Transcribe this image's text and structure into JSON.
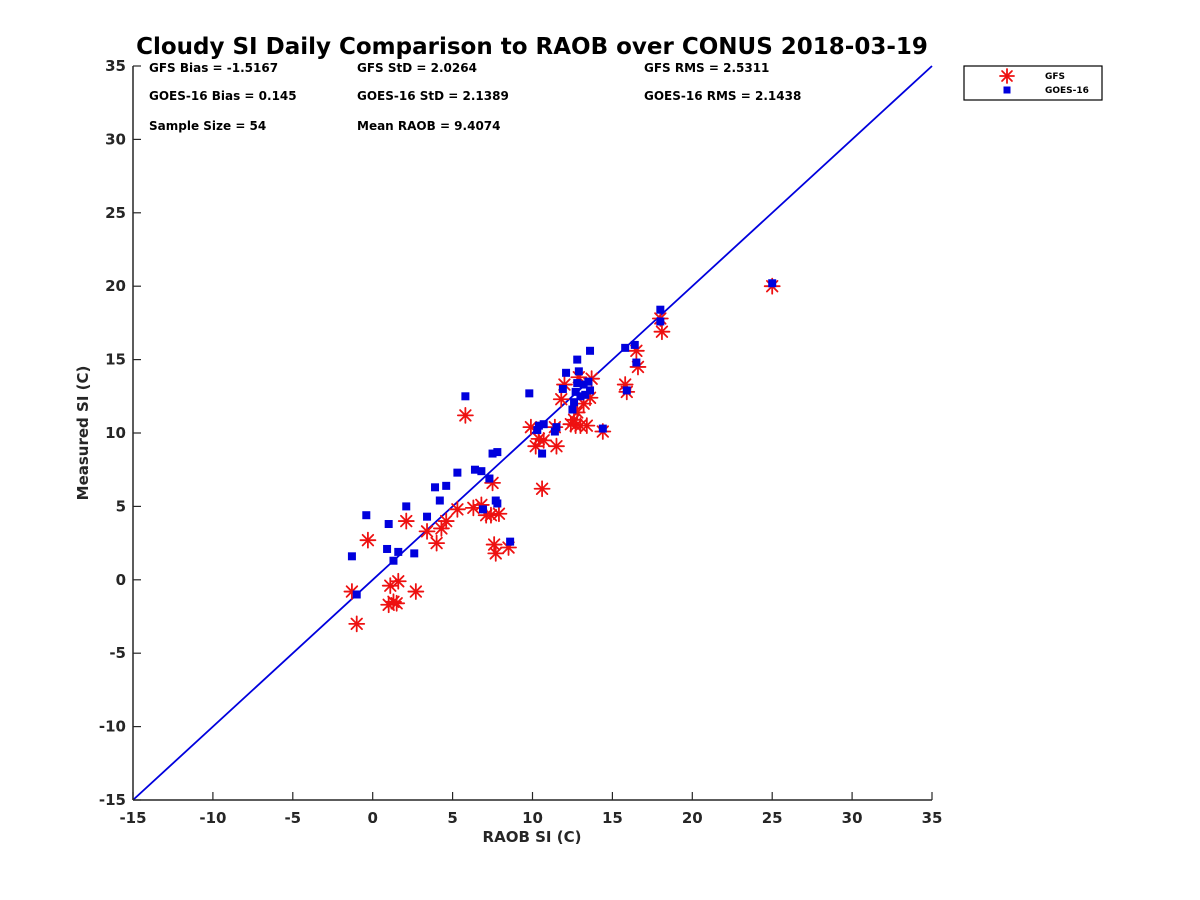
{
  "chart_data": {
    "type": "scatter",
    "title": "Cloudy SI Daily Comparison to RAOB over CONUS 2018-03-19",
    "xlabel": "RAOB SI (C)",
    "ylabel": "Measured SI (C)",
    "xlim": [
      -15,
      35
    ],
    "ylim": [
      -15,
      35
    ],
    "xticks": [
      -15,
      -10,
      -5,
      0,
      5,
      10,
      15,
      20,
      25,
      30,
      35
    ],
    "yticks": [
      -15,
      -10,
      -5,
      0,
      5,
      10,
      15,
      20,
      25,
      30,
      35
    ],
    "xtick_labels": [
      "-15",
      "-10",
      "-5",
      "0",
      "5",
      "10",
      "15",
      "20",
      "25",
      "30",
      "35"
    ],
    "ytick_labels": [
      "-15",
      "-10",
      "-5",
      "0",
      "5",
      "10",
      "15",
      "20",
      "25",
      "30",
      "35"
    ],
    "grid": false,
    "legend_position": "top-right outside",
    "reference_line": {
      "from": [
        -15,
        -15
      ],
      "to": [
        35,
        35
      ],
      "color": "#0000dd"
    },
    "stats": [
      [
        "GFS Bias = -1.5167",
        "GFS StD = 2.0264",
        "GFS RMS = 2.5311"
      ],
      [
        "GOES-16 Bias = 0.145",
        "GOES-16 StD = 2.1389",
        "GOES-16 RMS = 2.1438"
      ],
      [
        "Sample Size = 54",
        "Mean RAOB = 9.4074",
        ""
      ]
    ],
    "series": [
      {
        "name": "GFS",
        "marker": "asterisk",
        "color": "#ee1111",
        "points": [
          [
            -1.3,
            -0.8
          ],
          [
            -1.0,
            -3.0
          ],
          [
            -0.3,
            2.7
          ],
          [
            1.0,
            -1.7
          ],
          [
            1.1,
            -0.4
          ],
          [
            1.3,
            -1.5
          ],
          [
            1.5,
            -1.6
          ],
          [
            1.6,
            -0.1
          ],
          [
            2.1,
            4.0
          ],
          [
            2.7,
            -0.8
          ],
          [
            3.4,
            3.3
          ],
          [
            4.0,
            2.5
          ],
          [
            4.3,
            3.5
          ],
          [
            4.6,
            4.0
          ],
          [
            5.3,
            4.8
          ],
          [
            5.8,
            11.2
          ],
          [
            6.3,
            4.9
          ],
          [
            6.8,
            5.1
          ],
          [
            7.1,
            4.4
          ],
          [
            7.4,
            4.4
          ],
          [
            7.5,
            6.6
          ],
          [
            7.6,
            2.4
          ],
          [
            7.7,
            1.8
          ],
          [
            7.9,
            4.5
          ],
          [
            8.5,
            2.2
          ],
          [
            9.9,
            10.4
          ],
          [
            10.2,
            9.1
          ],
          [
            10.4,
            9.6
          ],
          [
            10.6,
            6.2
          ],
          [
            10.7,
            9.5
          ],
          [
            11.4,
            10.4
          ],
          [
            11.5,
            9.1
          ],
          [
            11.8,
            12.3
          ],
          [
            12.0,
            13.3
          ],
          [
            12.4,
            10.6
          ],
          [
            12.6,
            10.9
          ],
          [
            12.7,
            10.5
          ],
          [
            12.8,
            11.4
          ],
          [
            12.9,
            13.8
          ],
          [
            13.0,
            10.5
          ],
          [
            13.2,
            12.0
          ],
          [
            13.4,
            10.5
          ],
          [
            13.6,
            12.4
          ],
          [
            13.7,
            13.7
          ],
          [
            14.4,
            10.1
          ],
          [
            15.8,
            13.3
          ],
          [
            15.9,
            12.8
          ],
          [
            16.5,
            15.6
          ],
          [
            16.6,
            14.5
          ],
          [
            18.0,
            17.8
          ],
          [
            18.1,
            16.9
          ],
          [
            25.0,
            20.0
          ]
        ]
      },
      {
        "name": "GOES-16",
        "marker": "square",
        "color": "#0000dd",
        "points": [
          [
            -1.3,
            1.6
          ],
          [
            -1.0,
            -1.0
          ],
          [
            -0.4,
            4.4
          ],
          [
            0.9,
            2.1
          ],
          [
            1.0,
            3.8
          ],
          [
            1.3,
            1.3
          ],
          [
            1.6,
            1.9
          ],
          [
            2.1,
            5.0
          ],
          [
            2.6,
            1.8
          ],
          [
            3.4,
            4.3
          ],
          [
            3.9,
            6.3
          ],
          [
            4.2,
            5.4
          ],
          [
            4.6,
            6.4
          ],
          [
            5.3,
            7.3
          ],
          [
            5.8,
            12.5
          ],
          [
            6.4,
            7.5
          ],
          [
            6.8,
            7.4
          ],
          [
            6.9,
            4.8
          ],
          [
            7.3,
            6.9
          ],
          [
            7.5,
            8.6
          ],
          [
            7.7,
            5.4
          ],
          [
            7.8,
            5.2
          ],
          [
            7.8,
            8.7
          ],
          [
            8.6,
            2.6
          ],
          [
            9.8,
            12.7
          ],
          [
            10.3,
            10.2
          ],
          [
            10.4,
            10.5
          ],
          [
            10.6,
            8.6
          ],
          [
            10.7,
            10.6
          ],
          [
            11.4,
            10.1
          ],
          [
            11.5,
            10.4
          ],
          [
            11.9,
            13.0
          ],
          [
            12.1,
            14.1
          ],
          [
            12.5,
            11.6
          ],
          [
            12.6,
            12.1
          ],
          [
            12.7,
            12.8
          ],
          [
            12.8,
            13.4
          ],
          [
            12.8,
            15.0
          ],
          [
            12.9,
            14.2
          ],
          [
            13.0,
            12.5
          ],
          [
            13.2,
            13.3
          ],
          [
            13.3,
            12.6
          ],
          [
            13.5,
            13.5
          ],
          [
            13.6,
            12.9
          ],
          [
            13.6,
            15.6
          ],
          [
            14.4,
            10.3
          ],
          [
            15.8,
            15.8
          ],
          [
            15.9,
            12.9
          ],
          [
            16.4,
            16.0
          ],
          [
            16.5,
            14.8
          ],
          [
            18.0,
            18.4
          ],
          [
            18.0,
            17.6
          ],
          [
            25.0,
            20.2
          ]
        ]
      }
    ]
  }
}
